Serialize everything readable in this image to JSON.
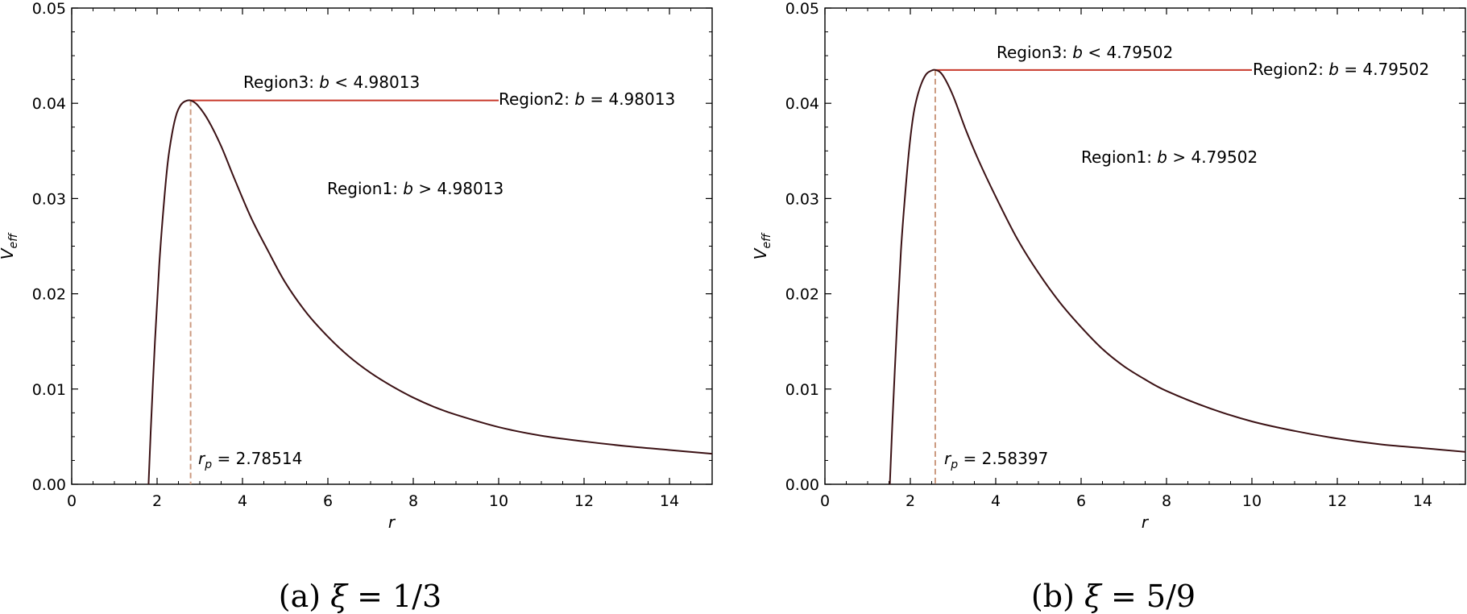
{
  "chart_data": [
    {
      "type": "line",
      "caption": "(a) ξ = 1/3",
      "xlabel": "r",
      "ylabel": "V_eff",
      "xlim": [
        0,
        15
      ],
      "ylim": [
        0,
        0.05
      ],
      "xticks": [
        0,
        2,
        4,
        6,
        8,
        10,
        12,
        14
      ],
      "yticks": [
        0.0,
        0.01,
        0.02,
        0.03,
        0.04,
        0.05
      ],
      "ytick_labels": [
        "0.00",
        "0.01",
        "0.02",
        "0.03",
        "0.04",
        "0.05"
      ],
      "series": [
        {
          "color": "#3b1114",
          "x": [
            1.8,
            1.85,
            1.95,
            2.05,
            2.15,
            2.25,
            2.35,
            2.45,
            2.55,
            2.65,
            2.78514,
            2.95,
            3.2,
            3.5,
            3.8,
            4.2,
            4.6,
            5.0,
            5.5,
            6.0,
            6.5,
            7.0,
            7.5,
            8.0,
            8.5,
            9.0,
            10.0,
            11.0,
            12.0,
            13.0,
            14.0,
            15.0
          ],
          "y": [
            0.0,
            0.0055,
            0.015,
            0.023,
            0.029,
            0.0338,
            0.0368,
            0.0388,
            0.0398,
            0.0402,
            0.0403,
            0.0398,
            0.0382,
            0.0355,
            0.0322,
            0.028,
            0.0245,
            0.0212,
            0.018,
            0.0155,
            0.0134,
            0.0117,
            0.0103,
            0.0091,
            0.0081,
            0.0073,
            0.006,
            0.0051,
            0.0045,
            0.004,
            0.0036,
            0.0032
          ]
        }
      ],
      "peak": {
        "r_p": 2.78514,
        "v_max": 0.0403,
        "line_end_x": 10.0
      },
      "annotations": {
        "region3_prefix": "Region3: ",
        "region3_var": "b",
        "region3_rel": " < 4.98013",
        "region2_prefix": "Region2: ",
        "region2_var": "b",
        "region2_rel": " = 4.98013",
        "region1_prefix": "Region1: ",
        "region1_var": "b",
        "region1_rel": " > 4.98013",
        "rp_var": "r",
        "rp_sub": "p",
        "rp_rel": " = 2.78514"
      },
      "colors": {
        "curve": "#3b1114",
        "horizontal": "#c8392b",
        "dashed": "#cc9a80"
      }
    },
    {
      "type": "line",
      "caption": "(b) ξ = 5/9",
      "xlabel": "r",
      "ylabel": "V_eff",
      "xlim": [
        0,
        15
      ],
      "ylim": [
        0,
        0.05
      ],
      "xticks": [
        0,
        2,
        4,
        6,
        8,
        10,
        12,
        14
      ],
      "yticks": [
        0.0,
        0.01,
        0.02,
        0.03,
        0.04,
        0.05
      ],
      "ytick_labels": [
        "0.00",
        "0.01",
        "0.02",
        "0.03",
        "0.04",
        "0.05"
      ],
      "series": [
        {
          "color": "#3b1114",
          "x": [
            1.52,
            1.58,
            1.68,
            1.78,
            1.88,
            1.98,
            2.08,
            2.18,
            2.28,
            2.38,
            2.48,
            2.58397,
            2.75,
            3.0,
            3.3,
            3.6,
            4.0,
            4.5,
            5.0,
            5.5,
            6.0,
            6.5,
            7.0,
            7.5,
            8.0,
            9.0,
            10.0,
            11.0,
            12.0,
            13.0,
            14.0,
            15.0
          ],
          "y": [
            0.0,
            0.0065,
            0.016,
            0.0245,
            0.0305,
            0.0355,
            0.039,
            0.041,
            0.0423,
            0.0431,
            0.0434,
            0.0435,
            0.043,
            0.0408,
            0.0372,
            0.034,
            0.0302,
            0.0258,
            0.0222,
            0.0191,
            0.0165,
            0.0142,
            0.0124,
            0.011,
            0.0098,
            0.008,
            0.0066,
            0.0056,
            0.0048,
            0.0042,
            0.0038,
            0.0034
          ]
        }
      ],
      "peak": {
        "r_p": 2.58397,
        "v_max": 0.0435,
        "line_end_x": 10.0
      },
      "annotations": {
        "region3_prefix": "Region3: ",
        "region3_var": "b",
        "region3_rel": " < 4.79502",
        "region2_prefix": "Region2: ",
        "region2_var": "b",
        "region2_rel": " = 4.79502",
        "region1_prefix": "Region1: ",
        "region1_var": "b",
        "region1_rel": " > 4.79502",
        "rp_var": "r",
        "rp_sub": "p",
        "rp_rel": " = 2.58397"
      },
      "colors": {
        "curve": "#3b1114",
        "horizontal": "#c8392b",
        "dashed": "#cc9a80"
      }
    }
  ]
}
